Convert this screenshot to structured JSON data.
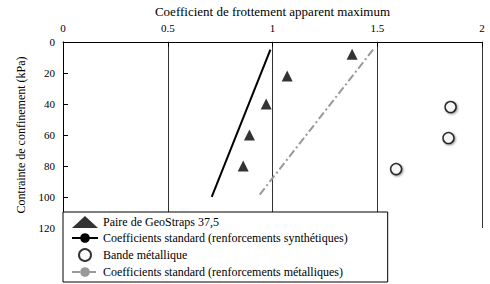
{
  "chart_data": {
    "type": "scatter",
    "x_label": "Coefficient de frottement apparent maximum",
    "y_label": "Contrainte de confinement (kPa)",
    "xlim": [
      0,
      2
    ],
    "xticks": [
      0,
      0.5,
      1,
      1.5,
      2
    ],
    "ylim": [
      0,
      120
    ],
    "yticks": [
      0,
      20,
      40,
      60,
      80,
      100,
      120
    ],
    "grid": true,
    "legend": "bottom",
    "series": [
      {
        "name": "Paire de GeoStraps 37,5",
        "type": "scatter",
        "marker": "triangle",
        "color": "#000000",
        "x": [
          1.38,
          1.07,
          0.97,
          0.89,
          0.86
        ],
        "values": [
          8,
          22,
          40,
          60,
          80
        ]
      },
      {
        "name": "Coefficients standard (renforcements synthétiques)",
        "type": "line",
        "line_style": "solid",
        "color": "#000000",
        "x": [
          0.99,
          0.71
        ],
        "values": [
          5,
          100
        ]
      },
      {
        "name": "Bande métallique",
        "type": "scatter",
        "marker": "open_circle",
        "color": "#000000",
        "x": [
          1.85,
          1.84,
          1.59
        ],
        "values": [
          42,
          62,
          82
        ]
      },
      {
        "name": "Coefficients standard (renforcements métalliques)",
        "type": "line",
        "line_style": "dashdot",
        "color": "#999999",
        "x": [
          1.48,
          0.93
        ],
        "values": [
          5,
          100
        ]
      }
    ]
  }
}
